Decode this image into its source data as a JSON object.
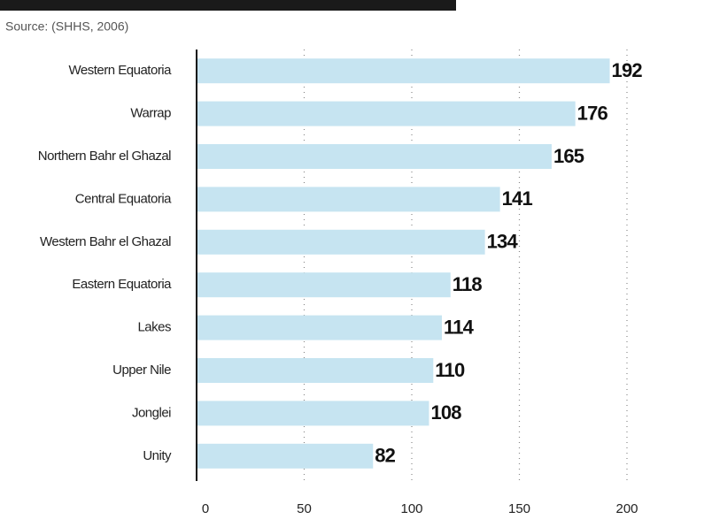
{
  "chart_data": {
    "type": "bar",
    "orientation": "horizontal",
    "source": "Source: (SHHS, 2006)",
    "categories": [
      "Western Equatoria",
      "Warrap",
      "Northern Bahr el Ghazal",
      "Central Equatoria",
      "Western Bahr el Ghazal",
      "Eastern  Equatoria",
      "Lakes",
      "Upper Nile",
      "Jonglei",
      "Unity"
    ],
    "values": [
      192,
      176,
      165,
      141,
      134,
      118,
      114,
      110,
      108,
      82
    ],
    "color": "#c6e4f1",
    "xlim": [
      0,
      200
    ],
    "xticks": [
      0,
      50,
      100,
      150,
      200
    ],
    "grid": true
  }
}
